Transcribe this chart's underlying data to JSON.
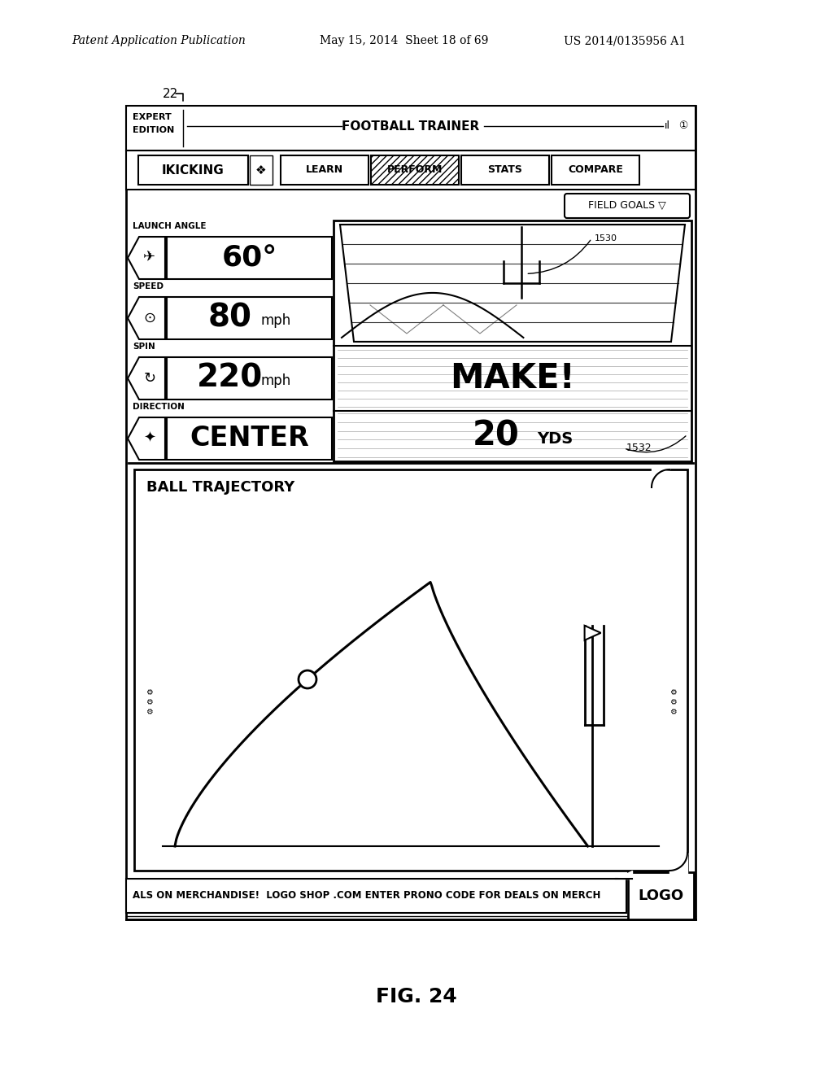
{
  "bg_color": "#ffffff",
  "header_text_left": "Patent Application Publication",
  "header_text_mid": "May 15, 2014  Sheet 18 of 69",
  "header_text_right": "US 2014/0135956 A1",
  "fig_label": "FIG. 24",
  "device_label": "22",
  "app_title": "FOOTBALL TRAINER",
  "field_goals_label": "FIELD GOALS ▽",
  "launch_angle_label": "LAUNCH ANGLE",
  "launch_angle_value": "60°",
  "speed_label": "SPEED",
  "speed_value": "80",
  "speed_unit": "mph",
  "spin_label": "SPIN",
  "spin_value": "220",
  "spin_unit": "mph",
  "direction_label": "DIRECTION",
  "direction_value": "CENTER",
  "field_label_1530": "1530",
  "result_label": "MAKE!",
  "distance_value": "20",
  "distance_unit": "YDS",
  "trajectory_title": "BALL TRAJECTORY",
  "trajectory_label": "1532",
  "ticker_text": "ALS ON MERCHANDISE!  LOGO SHOP .COM ENTER PRONO CODE FOR DEALS ON MERCH",
  "logo_text": "LOGO"
}
